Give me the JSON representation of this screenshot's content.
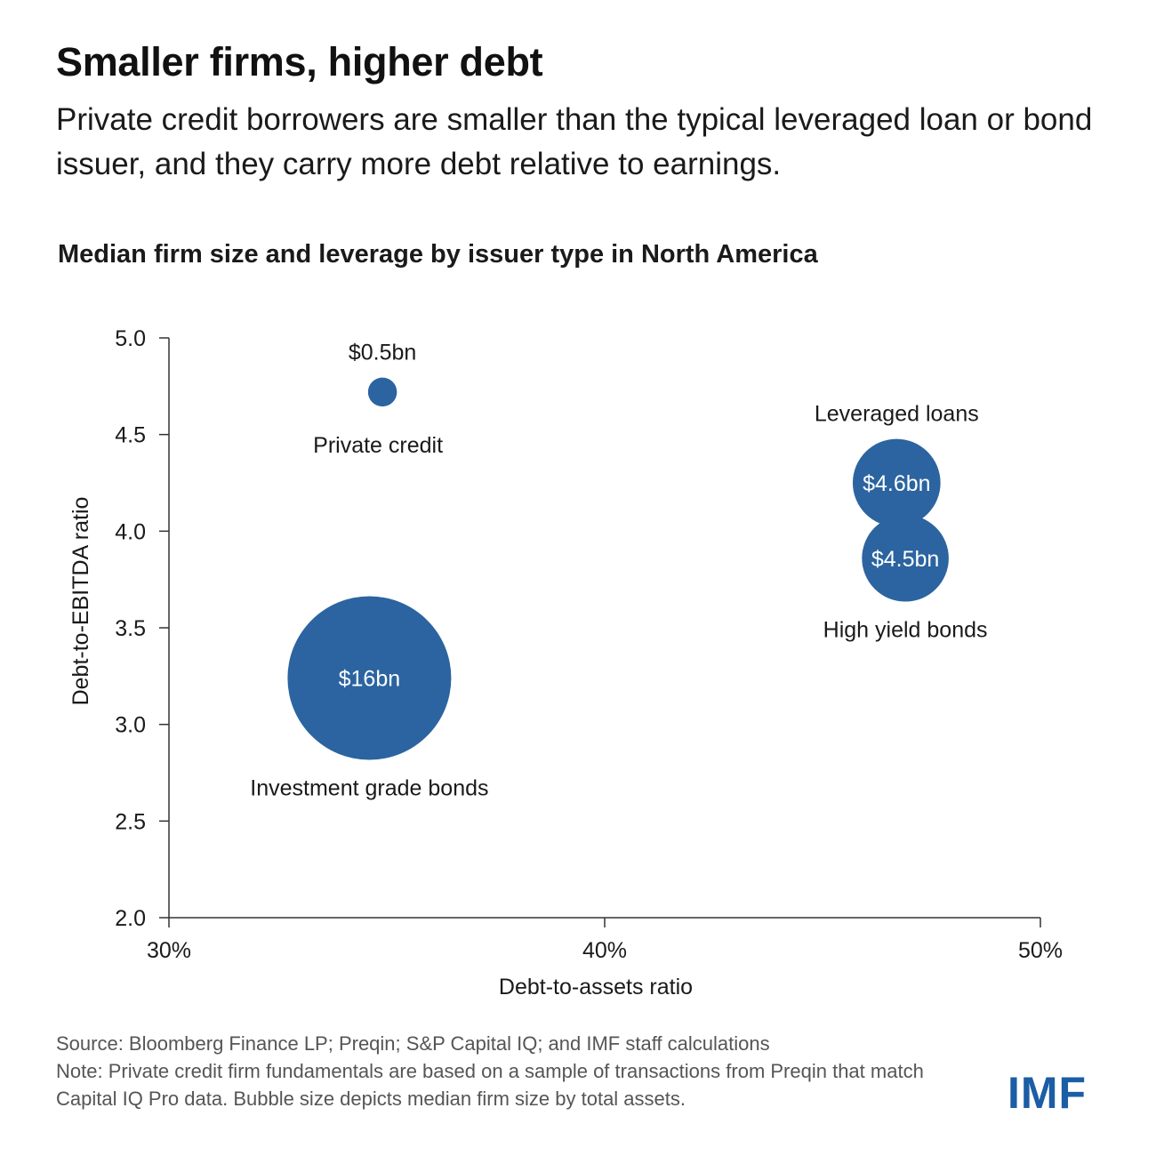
{
  "headline": "Smaller firms, higher debt",
  "subheadline": "Private credit borrowers are smaller than the typical leveraged loan or bond issuer, and they carry more debt relative to earnings.",
  "logo_text": "IMF",
  "footer": {
    "source": "Source: Bloomberg Finance LP; Preqin; S&P Capital IQ; and IMF staff calculations",
    "note": "Note: Private credit firm fundamentals are based on a sample of transactions from Preqin that match Capital IQ Pro data. Bubble size depicts median firm size by total assets."
  },
  "colors": {
    "bubble": "#2b64a0",
    "axis": "#333333",
    "logo": "#1b5ea6"
  },
  "chart_data": {
    "type": "scatter",
    "title": "Median firm size and leverage by issuer type in North America",
    "xlabel": "Debt-to-assets ratio",
    "ylabel": "Debt-to-EBITDA ratio",
    "xlim": [
      30,
      50
    ],
    "ylim": [
      2.0,
      5.0
    ],
    "x_ticks": [
      "30%",
      "40%",
      "50%"
    ],
    "x_tick_values": [
      30,
      40,
      50
    ],
    "y_ticks": [
      "2.0",
      "2.5",
      "3.0",
      "3.5",
      "4.0",
      "4.5",
      "5.0"
    ],
    "y_tick_values": [
      2.0,
      2.5,
      3.0,
      3.5,
      4.0,
      4.5,
      5.0
    ],
    "grid": false,
    "points": [
      {
        "name": "Private credit",
        "x": 34.9,
        "y": 4.72,
        "size_bn": 0.5,
        "size_label": "$0.5bn"
      },
      {
        "name": "Investment grade bonds",
        "x": 34.6,
        "y": 3.24,
        "size_bn": 16,
        "size_label": "$16bn"
      },
      {
        "name": "Leveraged loans",
        "x": 46.7,
        "y": 4.25,
        "size_bn": 4.6,
        "size_label": "$4.6bn"
      },
      {
        "name": "High yield bonds",
        "x": 46.9,
        "y": 3.86,
        "size_bn": 4.5,
        "size_label": "$4.5bn"
      }
    ]
  }
}
